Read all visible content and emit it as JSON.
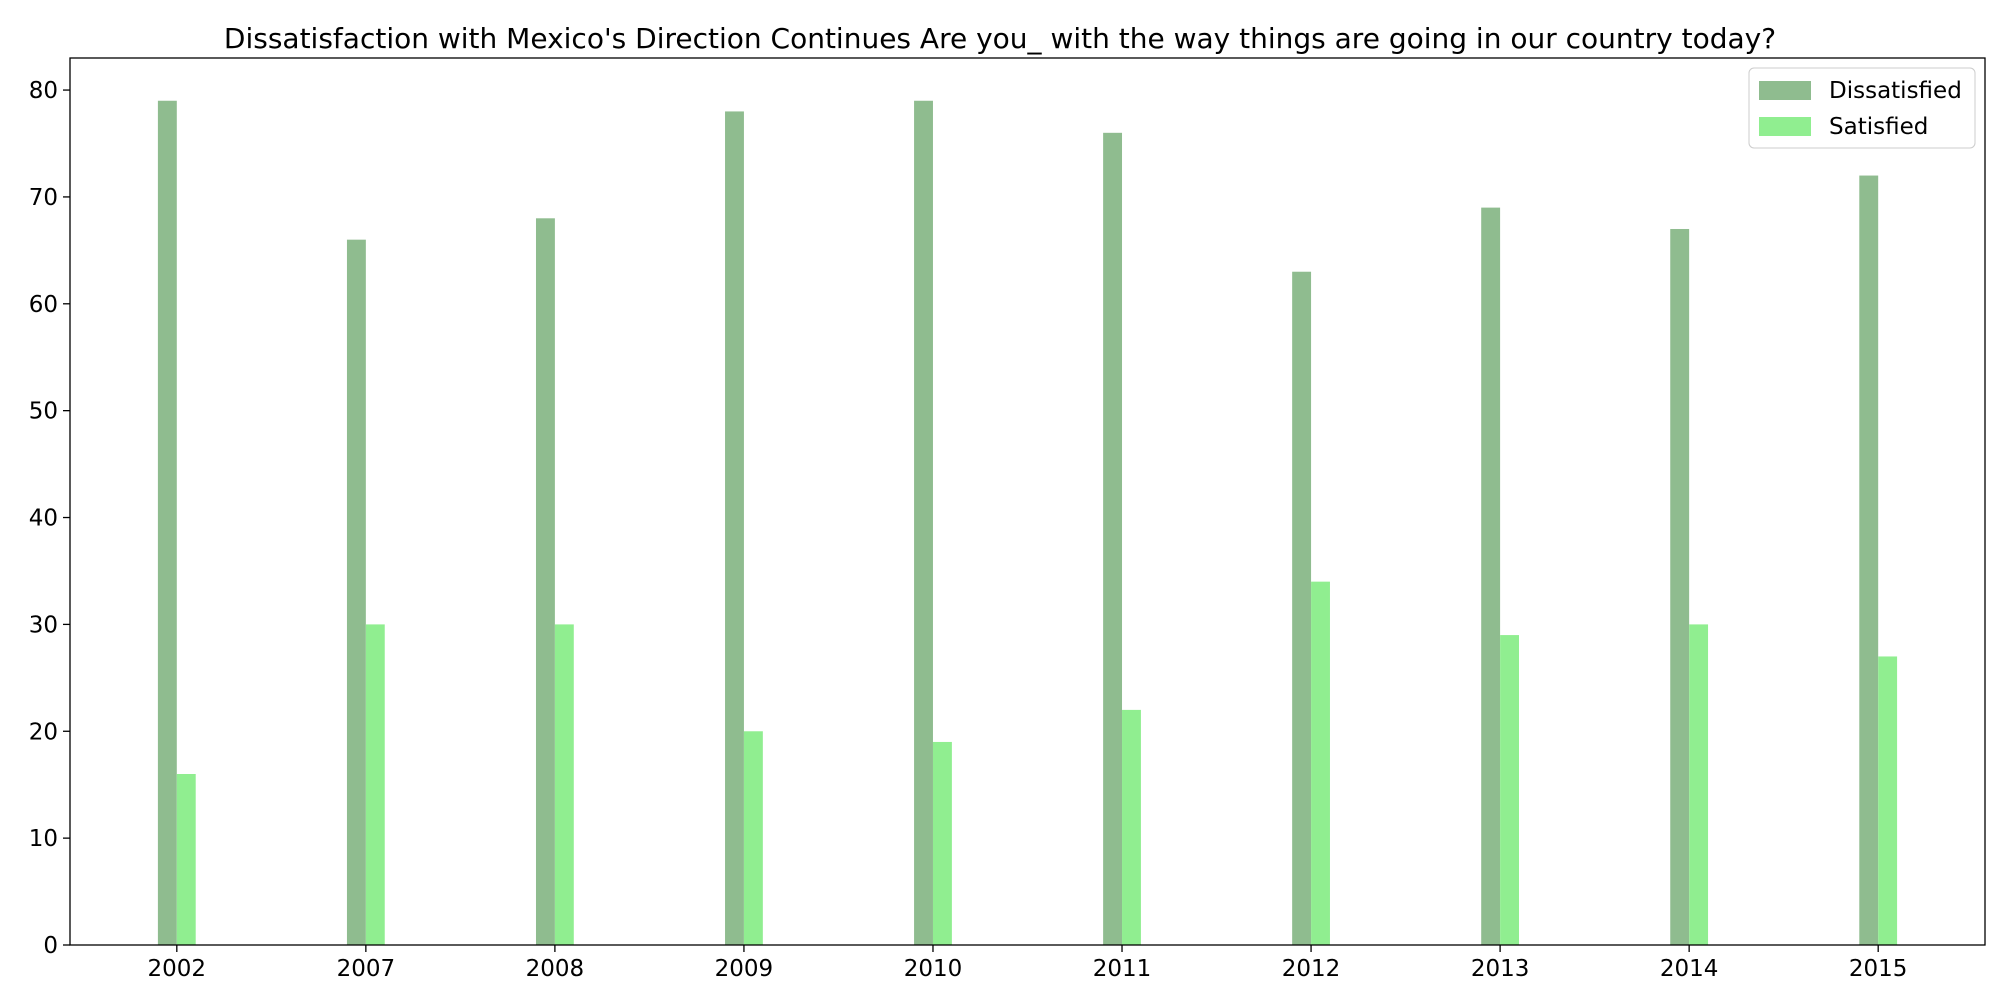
{
  "chart_data": {
    "type": "bar",
    "title": "Dissatisfaction with Mexico's Direction Continues Are you_ with the way things are going in our country today?",
    "xlabel": "",
    "ylabel": "",
    "categories": [
      "2002",
      "2007",
      "2008",
      "2009",
      "2010",
      "2011",
      "2012",
      "2013",
      "2014",
      "2015"
    ],
    "series": [
      {
        "name": "Dissatisfied",
        "color": "#8fbc8f",
        "values": [
          79,
          66,
          68,
          78,
          79,
          76,
          63,
          69,
          67,
          72
        ]
      },
      {
        "name": "Satisfied",
        "color": "#90ee90",
        "values": [
          16,
          30,
          30,
          20,
          19,
          22,
          34,
          29,
          30,
          27
        ]
      }
    ],
    "ylim": [
      0,
      83
    ],
    "yticks": [
      0,
      10,
      20,
      30,
      40,
      50,
      60,
      70,
      80
    ],
    "grid": false,
    "legend_position": "top-right"
  }
}
